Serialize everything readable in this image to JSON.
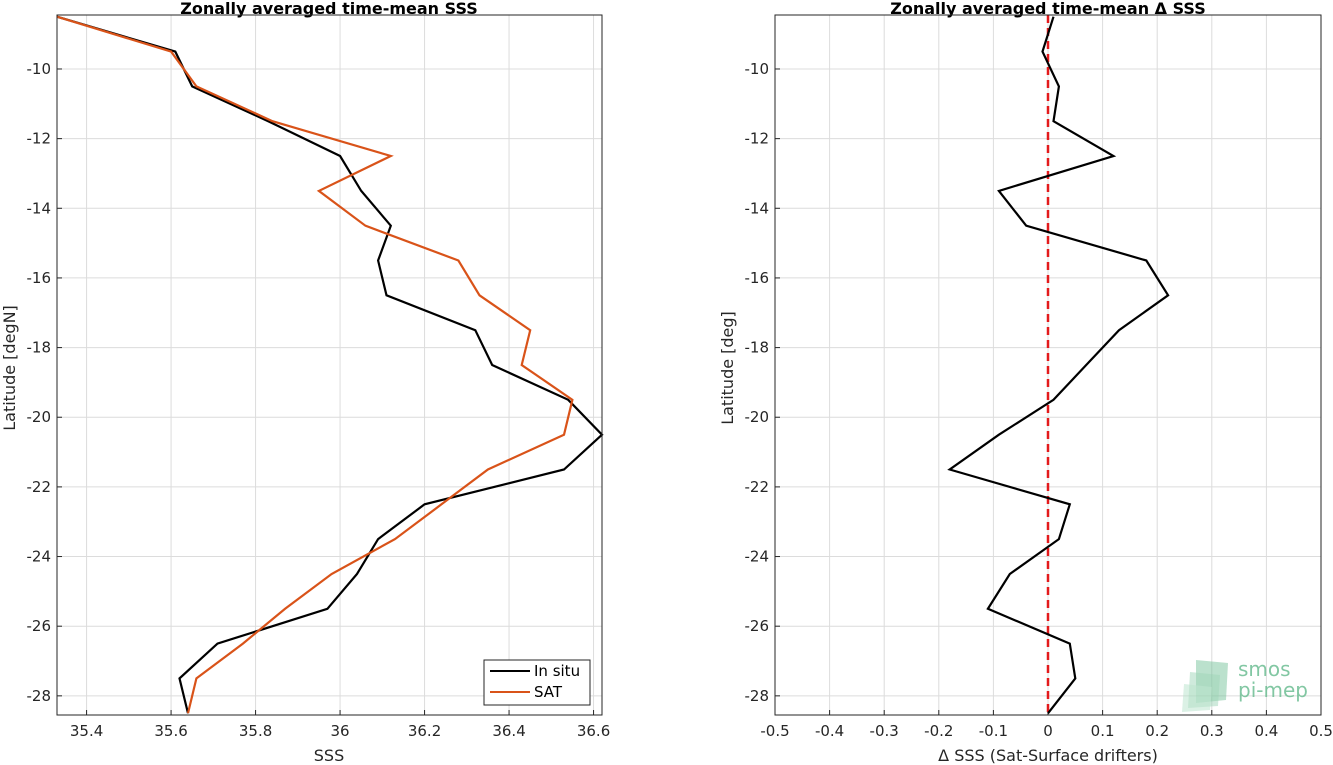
{
  "chart_data": [
    {
      "type": "line",
      "title": "Zonally averaged time-mean SSS",
      "xlabel": "SSS",
      "ylabel": "Latitude [degN]",
      "xlim": [
        35.33,
        36.62
      ],
      "ylim": [
        -28.55,
        -8.45
      ],
      "xticks": [
        35.4,
        35.6,
        35.8,
        36,
        36.2,
        36.4,
        36.6
      ],
      "xtick_labels": [
        "35.4",
        "35.6",
        "35.8",
        "36",
        "36.2",
        "36.4",
        "36.6"
      ],
      "yticks": [
        -10,
        -12,
        -14,
        -16,
        -18,
        -20,
        -22,
        -24,
        -26,
        -28
      ],
      "ytick_labels": [
        "-10",
        "-12",
        "-14",
        "-16",
        "-18",
        "-20",
        "-22",
        "-24",
        "-26",
        "-28"
      ],
      "grid": true,
      "legend": "bottom-right",
      "series": [
        {
          "name": "In situ",
          "color": "#000000",
          "points": [
            [
              35.33,
              -8.5
            ],
            [
              35.61,
              -9.5
            ],
            [
              35.65,
              -10.5
            ],
            [
              35.83,
              -11.5
            ],
            [
              36.0,
              -12.5
            ],
            [
              36.05,
              -13.5
            ],
            [
              36.12,
              -14.5
            ],
            [
              36.09,
              -15.5
            ],
            [
              36.11,
              -16.5
            ],
            [
              36.32,
              -17.5
            ],
            [
              36.36,
              -18.5
            ],
            [
              36.54,
              -19.5
            ],
            [
              36.62,
              -20.5
            ],
            [
              36.53,
              -21.5
            ],
            [
              36.2,
              -22.5
            ],
            [
              36.09,
              -23.5
            ],
            [
              36.04,
              -24.5
            ],
            [
              35.97,
              -25.5
            ],
            [
              35.71,
              -26.5
            ],
            [
              35.62,
              -27.5
            ],
            [
              35.64,
              -28.5
            ]
          ]
        },
        {
          "name": "SAT",
          "color": "#D95319",
          "points": [
            [
              35.33,
              -8.5
            ],
            [
              35.6,
              -9.5
            ],
            [
              35.66,
              -10.5
            ],
            [
              35.84,
              -11.5
            ],
            [
              36.12,
              -12.5
            ],
            [
              35.95,
              -13.5
            ],
            [
              36.06,
              -14.5
            ],
            [
              36.28,
              -15.5
            ],
            [
              36.33,
              -16.5
            ],
            [
              36.45,
              -17.5
            ],
            [
              36.43,
              -18.5
            ],
            [
              36.55,
              -19.5
            ],
            [
              36.53,
              -20.5
            ],
            [
              36.35,
              -21.5
            ],
            [
              36.24,
              -22.5
            ],
            [
              36.13,
              -23.5
            ],
            [
              35.98,
              -24.5
            ],
            [
              35.87,
              -25.5
            ],
            [
              35.77,
              -26.5
            ],
            [
              35.66,
              -27.5
            ],
            [
              35.64,
              -28.5
            ]
          ]
        }
      ]
    },
    {
      "type": "line",
      "title": "Zonally averaged time-mean Δ SSS",
      "xlabel": "Δ SSS (Sat-Surface drifters)",
      "ylabel": "Latitude [deg]",
      "xlim": [
        -0.5,
        0.5
      ],
      "ylim": [
        -28.55,
        -8.45
      ],
      "xticks": [
        -0.5,
        -0.4,
        -0.3,
        -0.2,
        -0.1,
        0,
        0.1,
        0.2,
        0.3,
        0.4,
        0.5
      ],
      "xtick_labels": [
        "-0.5",
        "-0.4",
        "-0.3",
        "-0.2",
        "-0.1",
        "0",
        "0.1",
        "0.2",
        "0.3",
        "0.4",
        "0.5"
      ],
      "yticks": [
        -10,
        -12,
        -14,
        -16,
        -18,
        -20,
        -22,
        -24,
        -26,
        -28
      ],
      "ytick_labels": [
        "-10",
        "-12",
        "-14",
        "-16",
        "-18",
        "-20",
        "-22",
        "-24",
        "-26",
        "-28"
      ],
      "grid": true,
      "reference_line": {
        "x": 0,
        "color": "#E31A1C",
        "style": "dashed"
      },
      "series": [
        {
          "color": "#000000",
          "points": [
            [
              0.01,
              -8.5
            ],
            [
              -0.01,
              -9.5
            ],
            [
              0.02,
              -10.5
            ],
            [
              0.01,
              -11.5
            ],
            [
              0.12,
              -12.5
            ],
            [
              -0.09,
              -13.5
            ],
            [
              -0.04,
              -14.5
            ],
            [
              0.18,
              -15.5
            ],
            [
              0.22,
              -16.5
            ],
            [
              0.13,
              -17.5
            ],
            [
              0.07,
              -18.5
            ],
            [
              0.01,
              -19.5
            ],
            [
              -0.09,
              -20.5
            ],
            [
              -0.18,
              -21.5
            ],
            [
              0.04,
              -22.5
            ],
            [
              0.02,
              -23.5
            ],
            [
              -0.07,
              -24.5
            ],
            [
              -0.11,
              -25.5
            ],
            [
              0.04,
              -26.5
            ],
            [
              0.05,
              -27.5
            ],
            [
              0.0,
              -28.5
            ]
          ]
        }
      ]
    }
  ],
  "watermark": {
    "line1": "smos",
    "line2": "pi-mep",
    "color": "#6DBE93"
  }
}
